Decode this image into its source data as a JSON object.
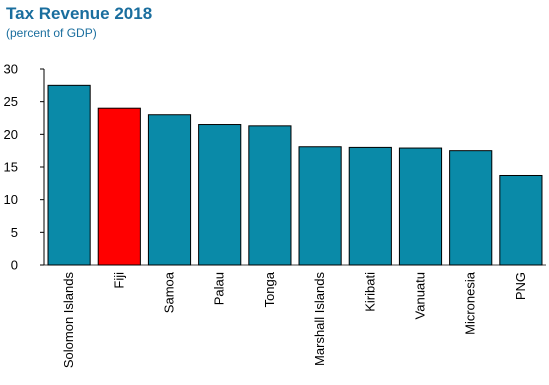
{
  "title": "Tax Revenue 2018",
  "subtitle": "(percent of GDP)",
  "chart_data": {
    "type": "bar",
    "title": "Tax Revenue 2018",
    "subtitle": "(percent of GDP)",
    "xlabel": "",
    "ylabel": "",
    "ylim": [
      0,
      30
    ],
    "yticks": [
      0,
      5,
      10,
      15,
      20,
      25,
      30
    ],
    "grid": false,
    "legend": "none",
    "categories": [
      "Solomon Islands",
      "Fiji",
      "Samoa",
      "Palau",
      "Tonga",
      "Marshall Islands",
      "Kiribati",
      "Vanuatu",
      "Micronesia",
      "PNG"
    ],
    "values": [
      27.5,
      24.0,
      23.0,
      21.5,
      21.3,
      18.1,
      18.0,
      17.9,
      17.5,
      13.7
    ],
    "colors": {
      "default": "#0a8aa8",
      "highlight": "#ff0000",
      "highlight_category": "Fiji"
    }
  }
}
